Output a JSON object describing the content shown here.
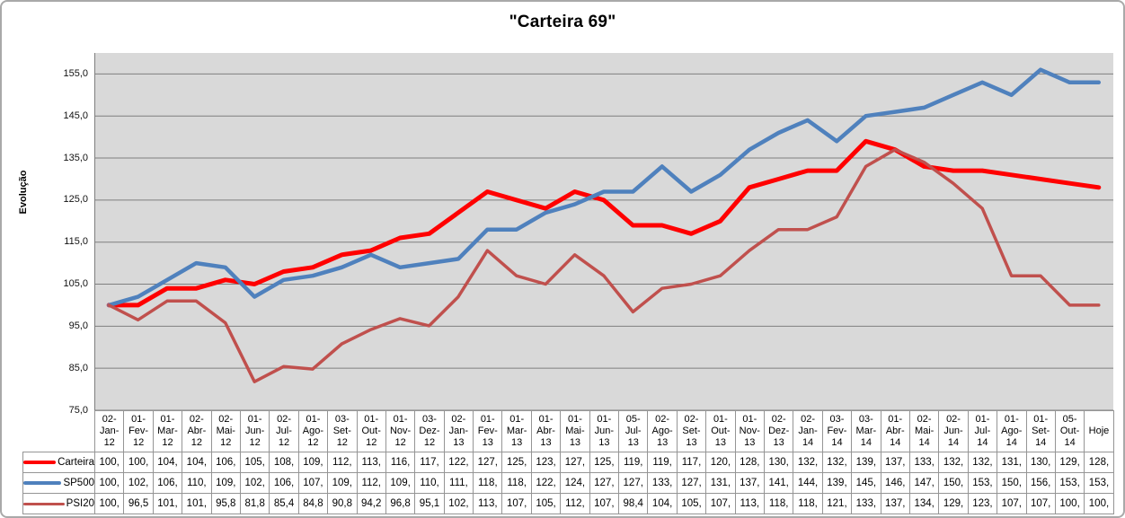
{
  "title": "\"Carteira 69\"",
  "y_axis": {
    "title": "Evolução",
    "tick_labels": [
      "155,0",
      "145,0",
      "135,0",
      "125,0",
      "115,0",
      "105,0",
      "95,0",
      "85,0",
      "75,0"
    ]
  },
  "colors": {
    "plot_background": "#d9d9d9",
    "gridline": "#7f7f7f",
    "table_border": "#959595",
    "carteira": "#ff0000",
    "sp500": "#4f81bd",
    "psi20": "#c0504d"
  },
  "chart_data": {
    "type": "line",
    "title": "\"Carteira 69\"",
    "xlabel": "",
    "ylabel": "Evolução",
    "ylim": [
      75,
      160
    ],
    "yticks": [
      155,
      145,
      135,
      125,
      115,
      105,
      95,
      85,
      75
    ],
    "grid": true,
    "legend_position": "table-left",
    "categories": [
      "02-Jan-12",
      "01-Fev-12",
      "01-Mar-12",
      "02-Abr-12",
      "02-Mai-12",
      "01-Jun-12",
      "02-Jul-12",
      "01-Ago-12",
      "03-Set-12",
      "01-Out-12",
      "01-Nov-12",
      "03-Dez-12",
      "02-Jan-13",
      "01-Fev-13",
      "01-Mar-13",
      "01-Abr-13",
      "01-Mai-13",
      "01-Jun-13",
      "05-Jul-13",
      "02-Ago-13",
      "02-Set-13",
      "01-Out-13",
      "01-Nov-13",
      "02-Dez-13",
      "02-Jan-14",
      "03-Fev-14",
      "03-Mar-14",
      "01-Abr-14",
      "02-Mai-14",
      "02-Jun-14",
      "01-Jul-14",
      "01-Ago-14",
      "01-Set-14",
      "05-Out-14",
      "Hoje"
    ],
    "series": [
      {
        "name": "Carteira",
        "color": "#ff0000",
        "line_width": 5,
        "values": [
          100,
          100,
          104,
          104,
          106,
          105,
          108,
          109,
          112,
          113,
          116,
          117,
          122,
          127,
          125,
          123,
          127,
          125,
          119,
          119,
          117,
          120,
          128,
          130,
          132,
          132,
          139,
          137,
          133,
          132,
          132,
          131,
          130,
          129,
          128
        ],
        "display": [
          "100,",
          "100,",
          "104,",
          "104,",
          "106,",
          "105,",
          "108,",
          "109,",
          "112,",
          "113,",
          "116,",
          "117,",
          "122,",
          "127,",
          "125,",
          "123,",
          "127,",
          "125,",
          "119,",
          "119,",
          "117,",
          "120,",
          "128,",
          "130,",
          "132,",
          "132,",
          "139,",
          "137,",
          "133,",
          "132,",
          "132,",
          "131,",
          "130,",
          "129,",
          "128,"
        ]
      },
      {
        "name": "SP500",
        "color": "#4f81bd",
        "line_width": 4.5,
        "values": [
          100,
          102,
          106,
          110,
          109,
          102,
          106,
          107,
          109,
          112,
          109,
          110,
          111,
          118,
          118,
          122,
          124,
          127,
          127,
          133,
          127,
          131,
          137,
          141,
          144,
          139,
          145,
          146,
          147,
          150,
          153,
          150,
          156,
          153,
          153
        ],
        "display": [
          "100,",
          "102,",
          "106,",
          "110,",
          "109,",
          "102,",
          "106,",
          "107,",
          "109,",
          "112,",
          "109,",
          "110,",
          "111,",
          "118,",
          "118,",
          "122,",
          "124,",
          "127,",
          "127,",
          "133,",
          "127,",
          "131,",
          "137,",
          "141,",
          "144,",
          "139,",
          "145,",
          "146,",
          "147,",
          "150,",
          "153,",
          "150,",
          "156,",
          "153,",
          "153,"
        ]
      },
      {
        "name": "PSI20",
        "color": "#c0504d",
        "line_width": 3.5,
        "values": [
          100,
          96.5,
          101,
          101,
          95.8,
          81.8,
          85.4,
          84.8,
          90.8,
          94.2,
          96.8,
          95.1,
          102,
          113,
          107,
          105,
          112,
          107,
          98.4,
          104,
          105,
          107,
          113,
          118,
          118,
          121,
          133,
          137,
          134,
          129,
          123,
          107,
          107,
          100,
          100
        ],
        "display": [
          "100,",
          "96,5",
          "101,",
          "101,",
          "95,8",
          "81,8",
          "85,4",
          "84,8",
          "90,8",
          "94,2",
          "96,8",
          "95,1",
          "102,",
          "113,",
          "107,",
          "105,",
          "112,",
          "107,",
          "98,4",
          "104,",
          "105,",
          "107,",
          "113,",
          "118,",
          "118,",
          "121,",
          "133,",
          "137,",
          "134,",
          "129,",
          "123,",
          "107,",
          "107,",
          "100,",
          "100,"
        ]
      }
    ]
  }
}
